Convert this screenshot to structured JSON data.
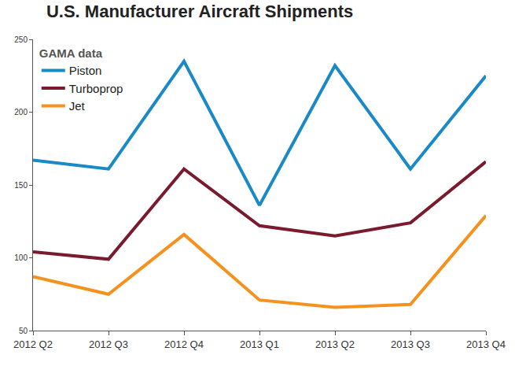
{
  "chart_data": {
    "type": "line",
    "title": "U.S. Manufacturer Aircraft Shipments",
    "subtitle": "GAMA data",
    "categories": [
      "2012 Q2",
      "2012 Q3",
      "2012 Q4",
      "2013 Q1",
      "2013 Q2",
      "2013 Q3",
      "2013 Q4"
    ],
    "series": [
      {
        "name": "Piston",
        "color": "#1a8ac6",
        "values": [
          167,
          161,
          235,
          136,
          232,
          161,
          225
        ]
      },
      {
        "name": "Turboprop",
        "color": "#7a1a2e",
        "values": [
          104,
          99,
          161,
          122,
          115,
          124,
          166
        ]
      },
      {
        "name": "Jet",
        "color": "#f5921e",
        "values": [
          87,
          75,
          116,
          71,
          66,
          68,
          129
        ]
      }
    ],
    "ylim": [
      50,
      250
    ],
    "yticks": [
      50,
      100,
      150,
      200,
      250
    ],
    "grid": false,
    "legend": "top-left"
  }
}
